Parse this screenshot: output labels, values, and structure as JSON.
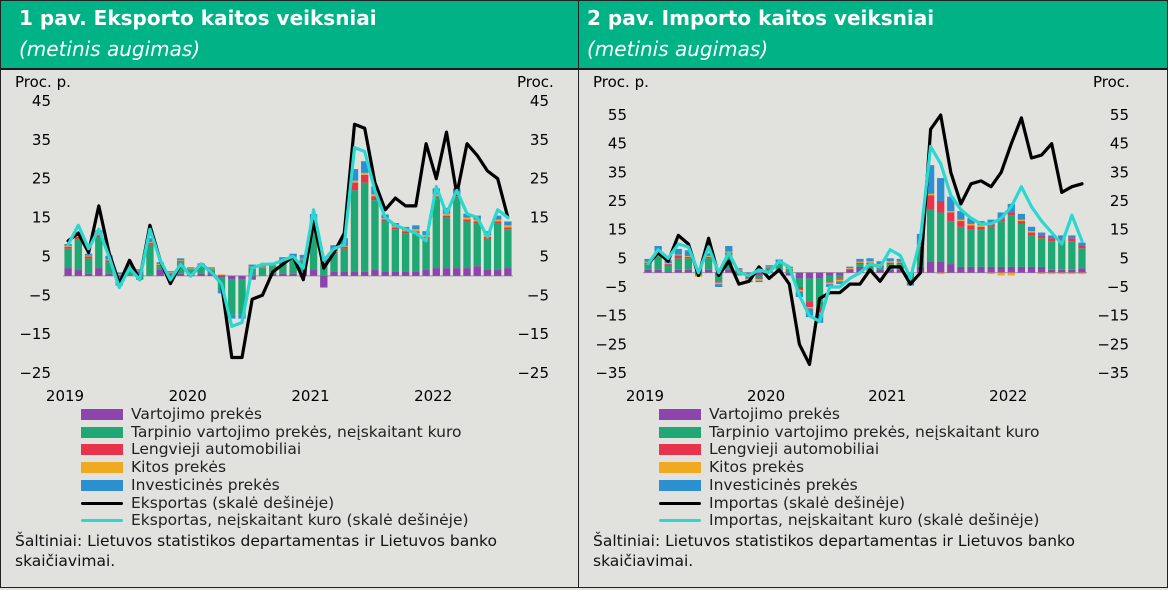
{
  "colors": {
    "vartojimo": "#8e44ad",
    "tarpinio": "#1fa874",
    "lengvieji": "#e8334d",
    "kitos": "#f2a922",
    "investicines": "#2c8fd0",
    "total": "#000000",
    "excl_fuel": "#2ad8d0"
  },
  "charts": [
    {
      "title": "1 pav. Eksporto kaitos veiksniai",
      "subtitle": "(metinis augimas)",
      "left_axis_label": "Proc. p.",
      "right_axis_label": "Proc.",
      "legend": [
        {
          "key": "vartojimo",
          "label": "Vartojimo prekės",
          "kind": "box"
        },
        {
          "key": "tarpinio",
          "label": "Tarpinio vartojimo prekės, neįskaitant kuro",
          "kind": "box"
        },
        {
          "key": "lengvieji",
          "label": "Lengvieji automobiliai",
          "kind": "box"
        },
        {
          "key": "kitos",
          "label": "Kitos prekės",
          "kind": "box"
        },
        {
          "key": "investicines",
          "label": "Investicinės prekės",
          "kind": "box"
        },
        {
          "key": "total",
          "label": "Eksportas (skalė dešinėje)",
          "kind": "line"
        },
        {
          "key": "excl_fuel",
          "label": "Eksportas, neįskaitant kuro (skalė dešinėje)",
          "kind": "line"
        }
      ],
      "source": "Šaltiniai: Lietuvos statistikos departamentas ir Lietuvos banko skaičiavimai."
    },
    {
      "title": "2 pav. Importo kaitos veiksniai",
      "subtitle": "(metinis augimas)",
      "left_axis_label": "Proc. p.",
      "right_axis_label": "Proc.",
      "legend": [
        {
          "key": "vartojimo",
          "label": "Vartojimo prekės",
          "kind": "box"
        },
        {
          "key": "tarpinio",
          "label": "Tarpinio vartojimo prekės, neįskaitant kuro",
          "kind": "box"
        },
        {
          "key": "lengvieji",
          "label": "Lengvieji automobiliai",
          "kind": "box"
        },
        {
          "key": "kitos",
          "label": "Kitos prekės",
          "kind": "box"
        },
        {
          "key": "investicines",
          "label": "Investicinės prekės",
          "kind": "box"
        },
        {
          "key": "total",
          "label": "Importas (skalė dešinėje)",
          "kind": "line"
        },
        {
          "key": "excl_fuel",
          "label": "Importas, neįskaitant kuro (skalė dešinėje)",
          "kind": "line"
        }
      ],
      "source": "Šaltiniai: Lietuvos statistikos departamentas ir Lietuvos banko skaičiavimai."
    }
  ],
  "chart_data": [
    {
      "type": "bar",
      "stacked": true,
      "title": "1 pav. Eksporto kaitos veiksniai",
      "x_tick_labels": [
        "2019",
        "2020",
        "2021",
        "2022"
      ],
      "y_ticks": [
        -25,
        -15,
        -5,
        5,
        15,
        25,
        35,
        45
      ],
      "ylim": [
        -25,
        45
      ],
      "ylabel_left": "Proc. p.",
      "ylabel_right": "Proc.",
      "grid": false,
      "series": [
        {
          "name": "Vartojimo prekės",
          "values": [
            2,
            1.5,
            0.5,
            2,
            0.5,
            -0.5,
            0,
            1,
            0,
            1.5,
            0.5,
            0.5,
            0.5,
            0.5,
            0.5,
            -0.5,
            -1,
            -1,
            -1,
            0,
            0.5,
            0.5,
            0.5,
            1,
            1.5,
            -3,
            1,
            1,
            1,
            1,
            1.5,
            1,
            1,
            1,
            1,
            1.5,
            2,
            2,
            2,
            2,
            2.5,
            1.5,
            1.5,
            2
          ]
        },
        {
          "name": "Tarpinio vartojimo prekės, neįskaitant kuro",
          "values": [
            5,
            8,
            4,
            8,
            3,
            -2,
            2,
            -1,
            8,
            1,
            -1,
            3,
            1,
            2,
            1,
            -3,
            -9,
            -9,
            2,
            2,
            2,
            3,
            4,
            3,
            12,
            3,
            5,
            6,
            21,
            23,
            18,
            13,
            11,
            10,
            10,
            8,
            18,
            13,
            18,
            12,
            11,
            8,
            12,
            10
          ]
        },
        {
          "name": "Lengvieji automobiliai",
          "values": [
            0.5,
            0.5,
            0.5,
            0.5,
            0.5,
            0.2,
            0.2,
            0.2,
            0.5,
            0.3,
            0.2,
            0.3,
            0.2,
            0.2,
            0.2,
            0.2,
            0,
            0,
            0.2,
            0.2,
            0.2,
            0.3,
            0.2,
            0.2,
            0.2,
            0.3,
            0.2,
            0.5,
            2,
            2,
            1,
            0.5,
            0.5,
            0.5,
            0.5,
            0.5,
            0.5,
            0.5,
            0.5,
            0.5,
            0.5,
            0.5,
            0.5,
            0.5
          ]
        },
        {
          "name": "Kitos prekės",
          "values": [
            0.2,
            0.2,
            0.2,
            0.2,
            0.2,
            0.2,
            0.2,
            0.2,
            0.2,
            0.2,
            0.2,
            0.2,
            0.2,
            0.2,
            0.2,
            0.2,
            0.2,
            0.2,
            0.2,
            0.2,
            0.2,
            0.2,
            0.2,
            0.2,
            0.2,
            0.2,
            0.2,
            0.2,
            0.5,
            0.5,
            0.5,
            0.3,
            0.3,
            0.3,
            0.5,
            0.5,
            0.5,
            0.5,
            0.5,
            0.5,
            0.5,
            0.5,
            0.5,
            0.5
          ]
        },
        {
          "name": "Investicinės prekės",
          "values": [
            0.5,
            1,
            0.5,
            1,
            1,
            0.5,
            0.3,
            0.3,
            1,
            0.5,
            0.3,
            0.5,
            0.3,
            0.3,
            0.3,
            -1,
            -1,
            -1,
            0.5,
            0.5,
            0.5,
            0.8,
            0.8,
            1,
            2,
            1,
            1.5,
            2,
            3,
            3,
            2,
            1,
            0.8,
            0.8,
            1,
            1,
            1.5,
            1.5,
            1.5,
            1,
            1,
            1,
            1,
            1
          ]
        }
      ],
      "lines": [
        {
          "name": "Eksportas (skalė dešinėje)",
          "axis": "right",
          "values": [
            9,
            11,
            6,
            18,
            6,
            -2,
            4,
            -1,
            13,
            4,
            -2,
            3,
            0,
            3,
            1,
            -2,
            -21,
            -21,
            -6,
            -5,
            1,
            3,
            5,
            -1,
            14,
            2,
            6,
            11,
            39,
            38,
            24,
            17,
            20,
            18,
            18,
            34,
            25,
            37,
            21,
            34,
            31,
            27,
            25,
            15
          ]
        },
        {
          "name": "Eksportas, neįskaitant kuro (skalė dešinėje)",
          "axis": "right",
          "values": [
            8,
            13,
            7,
            12,
            5,
            -3,
            2,
            -1,
            12,
            4,
            -1,
            3,
            0,
            3,
            1,
            -2,
            -13,
            -12,
            2,
            3,
            3,
            4,
            5,
            2,
            17,
            4,
            7,
            8,
            33,
            32,
            22,
            15,
            13,
            12,
            11,
            9,
            23,
            16,
            22,
            16,
            15,
            10,
            17,
            15
          ]
        }
      ]
    },
    {
      "type": "bar",
      "stacked": true,
      "title": "2 pav. Importo kaitos veiksniai",
      "x_tick_labels": [
        "2019",
        "2020",
        "2021",
        "2022"
      ],
      "y_ticks": [
        -35,
        -25,
        -15,
        -5,
        5,
        15,
        25,
        35,
        45,
        55
      ],
      "ylim": [
        -35,
        55
      ],
      "ylabel_left": "Proc. p.",
      "ylabel_right": "Proc.",
      "grid": false,
      "series": [
        {
          "name": "Vartojimo prekės",
          "values": [
            1,
            1,
            0.5,
            1,
            1,
            0.5,
            1,
            -1,
            1,
            0.5,
            -1,
            -1,
            0.5,
            1,
            -1,
            -2,
            -2,
            -2,
            -1,
            -1,
            1,
            2,
            1,
            1,
            1,
            1,
            -1,
            2,
            4,
            4,
            3,
            2,
            2,
            2,
            2,
            2,
            2,
            2,
            2,
            2,
            1,
            1,
            1,
            1.5
          ]
        },
        {
          "name": "Tarpinio vartojimo prekės, neįskaitant kuro",
          "values": [
            2,
            5,
            2,
            4,
            4,
            -1,
            4,
            -2,
            5,
            -1,
            -1,
            -1,
            1,
            2,
            1,
            -3,
            -8,
            -10,
            -2,
            -1,
            0,
            1,
            2,
            1,
            2,
            2,
            -2,
            6,
            18,
            17,
            15,
            14,
            13,
            13,
            14,
            16,
            18,
            15,
            11,
            10,
            10,
            10,
            10,
            7
          ]
        },
        {
          "name": "Lengvieji automobiliai",
          "values": [
            0.5,
            1,
            0.5,
            1,
            0.5,
            0.2,
            0.5,
            -0.5,
            1,
            0.3,
            -0.3,
            -0.3,
            0.3,
            0.3,
            0.3,
            -1,
            -2,
            -2,
            -0.5,
            -0.5,
            0.3,
            0.5,
            0.5,
            0.5,
            0.5,
            0.5,
            0,
            1,
            5,
            4,
            3,
            2,
            1.5,
            1,
            1,
            1,
            1,
            1,
            1,
            1,
            1,
            1,
            1,
            1
          ]
        },
        {
          "name": "Kitos prekės",
          "values": [
            0.3,
            0.3,
            0.3,
            0.3,
            0.3,
            -0.5,
            0.3,
            -0.5,
            0.3,
            0.3,
            -0.5,
            -0.5,
            0.3,
            0.3,
            0.3,
            -0.5,
            -0.5,
            -0.5,
            -0.5,
            -0.5,
            0.3,
            0.3,
            0.5,
            0.5,
            0.5,
            0.3,
            -0.5,
            0.5,
            0.5,
            -0.5,
            0.5,
            0.5,
            0.5,
            0.5,
            -0.5,
            -1,
            -1,
            0.5,
            0.5,
            -0.5,
            -0.5,
            -0.5,
            -0.5,
            -0.5
          ]
        },
        {
          "name": "Investicinės prekės",
          "values": [
            1,
            2,
            1,
            2,
            2,
            0.5,
            1,
            -1,
            2,
            0.5,
            -0.5,
            -0.5,
            0.5,
            1,
            0.5,
            -2,
            -3,
            -3,
            -1,
            -1,
            0.5,
            1,
            1,
            1,
            1,
            1,
            -1,
            4,
            10,
            8,
            5,
            3,
            2,
            1.5,
            1.5,
            2,
            3,
            2,
            1.5,
            1,
            1,
            1,
            1,
            1
          ]
        }
      ],
      "lines": [
        {
          "name": "Importas (skalė dešinėje)",
          "axis": "right",
          "values": [
            3,
            7,
            4,
            13,
            10,
            -1,
            12,
            -1,
            4,
            -4,
            -3,
            2,
            -2,
            1,
            -4,
            -25,
            -32,
            -9,
            -7,
            -7,
            -4,
            -4,
            1,
            -3,
            2,
            2,
            -4,
            0,
            50,
            55,
            35,
            24,
            31,
            32,
            30,
            35,
            45,
            54,
            40,
            41,
            45,
            28,
            30,
            31
          ]
        },
        {
          "name": "Importas, neįskaitant kuro (skalė dešinėje)",
          "axis": "right",
          "values": [
            3,
            8,
            5,
            10,
            9,
            0,
            9,
            0,
            7,
            0,
            -1,
            1,
            0,
            4,
            2,
            -8,
            -15,
            -17,
            -5,
            -5,
            -2,
            0,
            3,
            2,
            8,
            6,
            -2,
            12,
            44,
            38,
            27,
            22,
            19,
            17,
            17,
            19,
            23,
            30,
            23,
            18,
            14,
            10,
            20,
            11
          ]
        }
      ]
    }
  ]
}
